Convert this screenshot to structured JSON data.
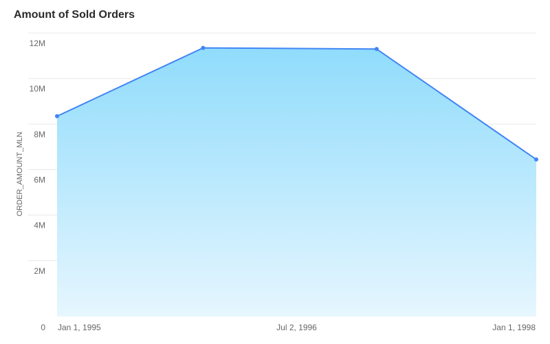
{
  "chart_data": {
    "type": "area",
    "title": "Amount of Sold Orders",
    "xlabel": "",
    "ylabel": "ORDER_AMOUNT_MLN",
    "x": [
      "1995-01-01",
      "1995-12-01",
      "1997-01-01",
      "1998-01-01"
    ],
    "series": [
      {
        "values": [
          8800000,
          11800000,
          11750000,
          6900000
        ]
      }
    ],
    "ylim": [
      0,
      12000000
    ],
    "yticks": [
      {
        "value": 0,
        "label": "0"
      },
      {
        "value": 2000000,
        "label": "2M"
      },
      {
        "value": 4000000,
        "label": "4M"
      },
      {
        "value": 6000000,
        "label": "6M"
      },
      {
        "value": 8000000,
        "label": "8M"
      },
      {
        "value": 10000000,
        "label": "10M"
      },
      {
        "value": 12000000,
        "label": "12M"
      }
    ],
    "xticks": [
      {
        "value": "1995-01-01",
        "label": "Jan 1, 1995"
      },
      {
        "value": "1996-07-02",
        "label": "Jul 2, 1996"
      },
      {
        "value": "1998-01-01",
        "label": "Jan 1, 1998"
      }
    ],
    "xlim": [
      "1995-01-01",
      "1998-01-01"
    ],
    "grid": true,
    "legend": "none",
    "colors": {
      "line": "#4285f4",
      "fill_top": "#90dcfc",
      "fill_bottom": "#e6f6fe",
      "grid": "#e8e8e8"
    }
  }
}
